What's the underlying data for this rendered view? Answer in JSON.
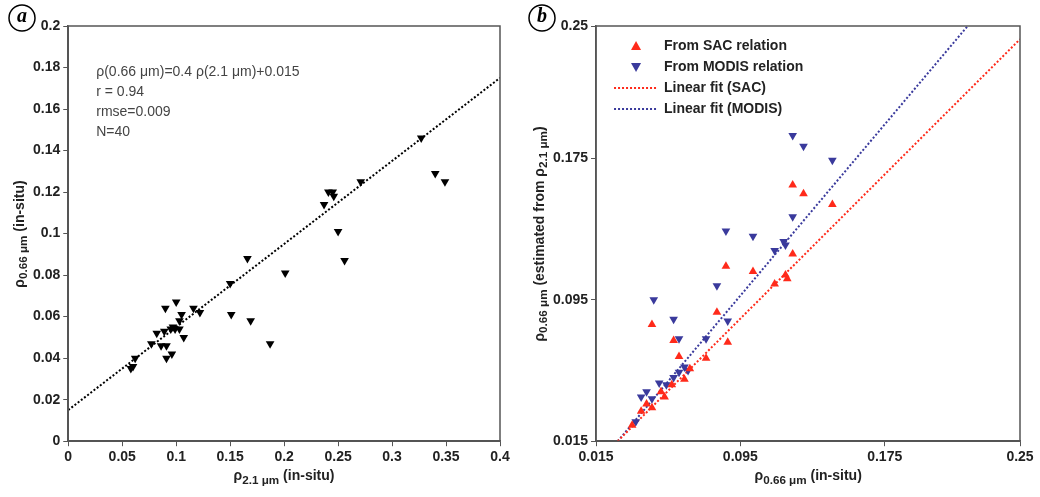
{
  "chart_data": [
    {
      "type": "scatter",
      "title": "a",
      "xlabel": "ρ$_{2.1 μm}$ (in-situ)",
      "ylabel": "ρ$_{0.66 μm}$ (in-situ)",
      "annotations": [
        "ρ(0.66 μm)=0.4 ρ(2.1 μm)+0.015",
        "r = 0.94",
        "rmse=0.009",
        "N=40"
      ],
      "xlim": [
        0,
        0.4
      ],
      "xticks": [
        0,
        0.05,
        0.1,
        0.15,
        0.2,
        0.25,
        0.3,
        0.35,
        0.4
      ],
      "ylim": [
        0,
        0.2
      ],
      "yticks": [
        0,
        0.02,
        0.04,
        0.06,
        0.08,
        0.1,
        0.12,
        0.14,
        0.16,
        0.18,
        0.2
      ],
      "grid": false,
      "legend": false,
      "series": [
        {
          "type": "scatter",
          "marker": "triangle-down",
          "color": "#000000",
          "x": [
            0.06,
            0.058,
            0.062,
            0.077,
            0.082,
            0.086,
            0.091,
            0.091,
            0.09,
            0.089,
            0.096,
            0.095,
            0.097,
            0.1,
            0.099,
            0.103,
            0.103,
            0.105,
            0.107,
            0.116,
            0.122,
            0.15,
            0.151,
            0.166,
            0.169,
            0.187,
            0.201,
            0.237,
            0.241,
            0.245,
            0.246,
            0.25,
            0.256,
            0.271,
            0.327,
            0.34,
            0.349
          ],
          "values": [
            0.036,
            0.035,
            0.04,
            0.047,
            0.052,
            0.046,
            0.046,
            0.04,
            0.064,
            0.053,
            0.042,
            0.054,
            0.055,
            0.067,
            0.054,
            0.054,
            0.058,
            0.061,
            0.05,
            0.064,
            0.062,
            0.076,
            0.061,
            0.088,
            0.058,
            0.047,
            0.081,
            0.114,
            0.12,
            0.12,
            0.118,
            0.101,
            0.087,
            0.125,
            0.146,
            0.129,
            0.125
          ]
        },
        {
          "type": "line",
          "line_style": "dotted",
          "color": "#000000",
          "x": [
            0,
            0.4
          ],
          "values": [
            0.015,
            0.175
          ]
        }
      ]
    },
    {
      "type": "scatter",
      "title": "b",
      "xlabel": "ρ$_{0.66 μm}$ (in-situ)",
      "ylabel": "ρ$_{0.66 μm}$ (estimated from ρ$_{2.1 μm}$)",
      "xlim": [
        0.015,
        0.25
      ],
      "xticks": [
        0.015,
        0.095,
        0.175,
        0.25
      ],
      "ylim": [
        0.015,
        0.25
      ],
      "yticks": [
        0.015,
        0.095,
        0.175,
        0.25
      ],
      "grid": false,
      "legend": "top left",
      "series": [
        {
          "type": "scatter",
          "name": "From SAC relation",
          "marker": "triangle",
          "color": "#ff2a1a",
          "x": [
            0.035,
            0.04,
            0.046,
            0.043,
            0.053,
            0.051,
            0.057,
            0.064,
            0.067,
            0.046,
            0.058,
            0.061,
            0.076,
            0.082,
            0.087,
            0.088,
            0.102,
            0.114,
            0.12,
            0.121,
            0.124,
            0.124,
            0.13,
            0.146
          ],
          "values": [
            0.024,
            0.032,
            0.034,
            0.036,
            0.04,
            0.043,
            0.047,
            0.05,
            0.056,
            0.081,
            0.072,
            0.063,
            0.062,
            0.088,
            0.114,
            0.071,
            0.111,
            0.104,
            0.109,
            0.107,
            0.121,
            0.16,
            0.155,
            0.149
          ]
        },
        {
          "type": "scatter",
          "name": "From MODIS relation",
          "marker": "triangle-down",
          "color": "#3a3a9c",
          "x": [
            0.037,
            0.04,
            0.043,
            0.046,
            0.05,
            0.054,
            0.058,
            0.061,
            0.064,
            0.066,
            0.047,
            0.058,
            0.061,
            0.076,
            0.082,
            0.088,
            0.087,
            0.102,
            0.114,
            0.119,
            0.12,
            0.124,
            0.124,
            0.13,
            0.146
          ],
          "values": [
            0.026,
            0.04,
            0.043,
            0.039,
            0.048,
            0.047,
            0.051,
            0.054,
            0.057,
            0.055,
            0.095,
            0.084,
            0.073,
            0.073,
            0.103,
            0.083,
            0.134,
            0.131,
            0.123,
            0.128,
            0.126,
            0.142,
            0.188,
            0.182,
            0.174
          ]
        },
        {
          "type": "line",
          "name": "Linear fit (SAC)",
          "line_style": "dotted",
          "color": "#ff2a1a",
          "x": [
            0.027,
            0.25
          ],
          "values": [
            0.015,
            0.2425
          ]
        },
        {
          "type": "line",
          "name": "Linear fit (MODIS)",
          "line_style": "dotted",
          "color": "#3a3a9c",
          "x": [
            0.027,
            0.221
          ],
          "values": [
            0.015,
            0.25
          ]
        }
      ]
    }
  ]
}
